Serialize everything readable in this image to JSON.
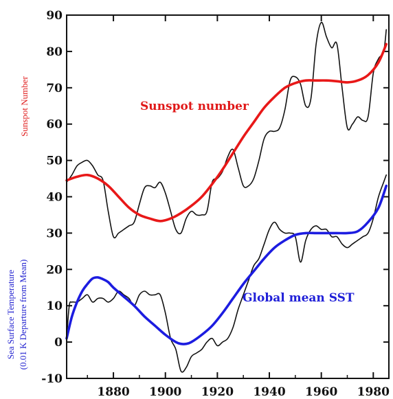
{
  "chart_data": {
    "type": "line",
    "ylim": [
      -10,
      90
    ],
    "xlim": [
      1862,
      1986
    ],
    "yticks": [
      -10,
      0,
      10,
      20,
      30,
      40,
      50,
      60,
      70,
      80,
      90
    ],
    "xticks": [
      1880,
      1900,
      1920,
      1940,
      1960,
      1980
    ],
    "ylabel_top": "Sunspot Number",
    "ylabel_bottom_line1": "Sea Surface Temperature",
    "ylabel_bottom_line2": "(0.01 K Departure from Mean)",
    "annotations": {
      "sunspot": "Sunspot number",
      "sst": "Global mean SST"
    },
    "colors": {
      "sunspot_smooth": "#e81818",
      "sst_smooth": "#1c1ce0",
      "raw": "#111111"
    },
    "series": [
      {
        "color": "#111111",
        "x": [
          1862,
          1864,
          1866,
          1868,
          1870,
          1872,
          1874,
          1876,
          1878,
          1880,
          1882,
          1884,
          1886,
          1888,
          1890,
          1892,
          1894,
          1896,
          1898,
          1900,
          1902,
          1904,
          1906,
          1908,
          1910,
          1912,
          1914,
          1916,
          1918,
          1920,
          1922,
          1924,
          1926,
          1928,
          1930,
          1932,
          1934,
          1936,
          1938,
          1940,
          1942,
          1944,
          1946,
          1948,
          1950,
          1952,
          1954,
          1956,
          1958,
          1960,
          1962,
          1964,
          1966,
          1968,
          1970,
          1972,
          1974,
          1976,
          1978,
          1980,
          1982,
          1984,
          1985
        ],
        "values": [
          44,
          46,
          48.5,
          49.5,
          50,
          48.5,
          46,
          44.5,
          36,
          29,
          30,
          31,
          32,
          33,
          38,
          42.5,
          43,
          42.5,
          44,
          41,
          36,
          31,
          30,
          34,
          36,
          35,
          35,
          36,
          44,
          45,
          47,
          51,
          53,
          48,
          43,
          43,
          45,
          50,
          56,
          58,
          58,
          59,
          64,
          72,
          73,
          71,
          65,
          67,
          82,
          88,
          84,
          81,
          82,
          70,
          59,
          60,
          62,
          61,
          62,
          74,
          78,
          80,
          86
        ]
      },
      {
        "color": "#e81818",
        "x": [
          1862,
          1866,
          1870,
          1874,
          1878,
          1882,
          1886,
          1890,
          1894,
          1898,
          1902,
          1906,
          1910,
          1914,
          1918,
          1922,
          1926,
          1930,
          1934,
          1938,
          1942,
          1946,
          1950,
          1954,
          1958,
          1962,
          1966,
          1970,
          1974,
          1978,
          1982,
          1985
        ],
        "values": [
          44.5,
          45.5,
          46,
          45,
          43,
          40,
          37,
          35,
          34,
          33.3,
          34,
          35.5,
          37.5,
          40,
          43.5,
          47.5,
          52,
          56.5,
          60.5,
          64.5,
          67.5,
          70,
          71.3,
          72,
          72,
          72,
          71.8,
          71.5,
          72,
          73.5,
          77,
          82
        ]
      },
      {
        "color": "#111111",
        "x": [
          1862,
          1863,
          1864,
          1866,
          1868,
          1870,
          1872,
          1874,
          1876,
          1878,
          1880,
          1882,
          1884,
          1886,
          1888,
          1890,
          1892,
          1894,
          1896,
          1898,
          1900,
          1902,
          1904,
          1906,
          1908,
          1910,
          1912,
          1914,
          1916,
          1918,
          1920,
          1922,
          1924,
          1926,
          1928,
          1930,
          1932,
          1934,
          1936,
          1938,
          1940,
          1942,
          1944,
          1946,
          1948,
          1950,
          1952,
          1954,
          1956,
          1958,
          1960,
          1962,
          1964,
          1966,
          1968,
          1970,
          1972,
          1974,
          1976,
          1978,
          1980,
          1982,
          1984,
          1985
        ],
        "values": [
          1,
          10,
          11,
          11,
          12,
          13,
          11,
          12,
          12,
          11,
          12,
          14,
          13,
          12,
          10,
          13,
          14,
          13,
          13,
          13,
          8,
          1,
          -2,
          -8,
          -7,
          -4,
          -3,
          -2,
          0,
          1,
          -1,
          0,
          1,
          4,
          9,
          13,
          17,
          21,
          23,
          27,
          31,
          33,
          31,
          30,
          30,
          29,
          22,
          28,
          31,
          32,
          31,
          31,
          29,
          29,
          27,
          26,
          27,
          28,
          29,
          30,
          34,
          40,
          44,
          46
        ]
      },
      {
        "color": "#1c1ce0",
        "x": [
          1862,
          1864,
          1866,
          1868,
          1870,
          1872,
          1874,
          1876,
          1878,
          1880,
          1884,
          1888,
          1892,
          1896,
          1900,
          1904,
          1906,
          1908,
          1910,
          1914,
          1918,
          1922,
          1926,
          1930,
          1934,
          1938,
          1942,
          1946,
          1950,
          1954,
          1958,
          1962,
          1966,
          1970,
          1974,
          1978,
          1982,
          1985
        ],
        "values": [
          1,
          7,
          11,
          14,
          16,
          17.5,
          17.8,
          17.3,
          16.5,
          15,
          12.5,
          10,
          7,
          4.5,
          2,
          0,
          -0.5,
          -0.5,
          0,
          2,
          4.5,
          8,
          12,
          16,
          19.5,
          23,
          26,
          28,
          29.5,
          30,
          30,
          30,
          30,
          30,
          30.5,
          33,
          37,
          43
        ]
      }
    ]
  }
}
